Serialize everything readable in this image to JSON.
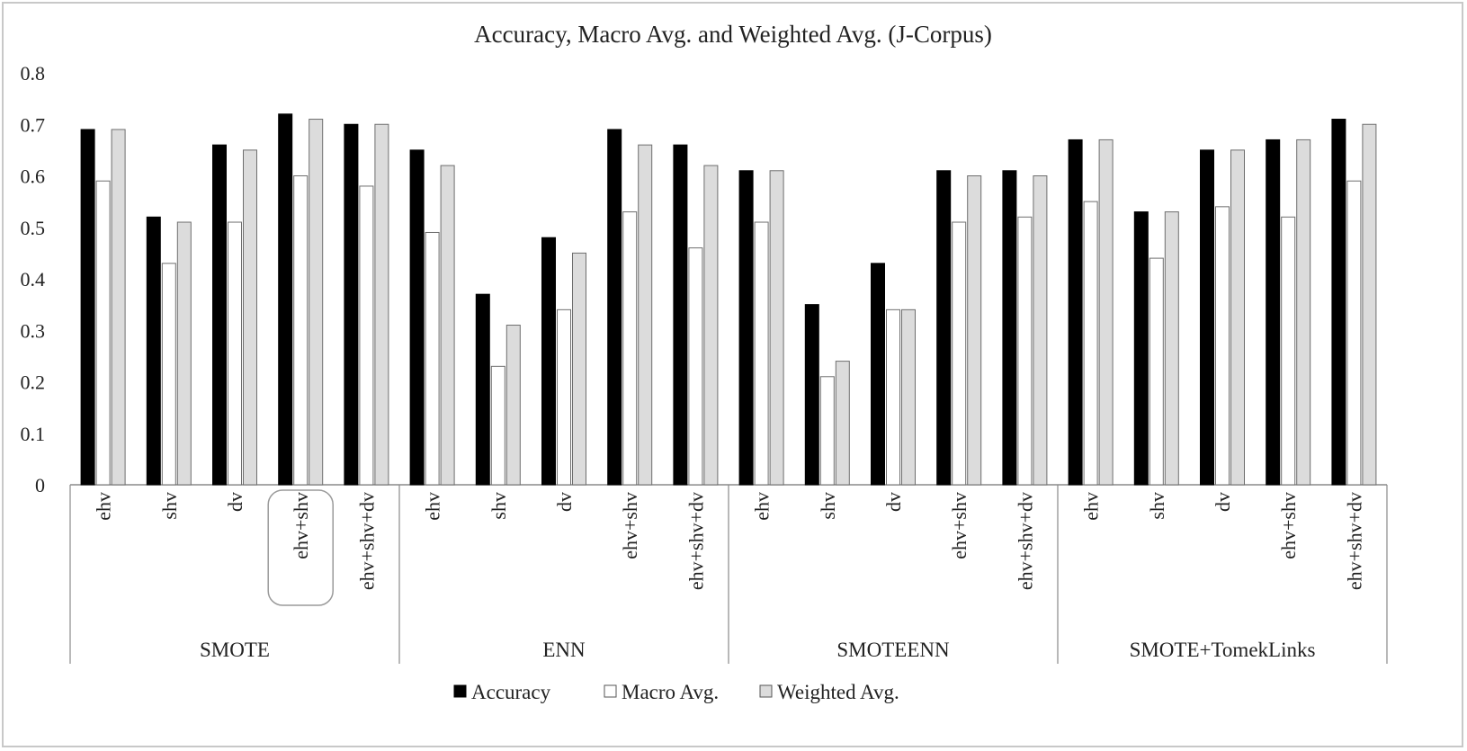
{
  "chart_data": {
    "type": "bar",
    "title": "Accuracy, Macro Avg. and Weighted Avg. (J-Corpus)",
    "xlabel": "",
    "ylabel": "",
    "ylim": [
      0,
      0.8
    ],
    "yticks": [
      "0",
      "0.1",
      "0.2",
      "0.3",
      "0.4",
      "0.5",
      "0.6",
      "0.7",
      "0.8"
    ],
    "grid": false,
    "legend_position": "bottom",
    "groups": [
      {
        "name": "SMOTE",
        "categories": [
          "ehv",
          "shv",
          "dv",
          "ehv+shv",
          "ehv+shv+dv"
        ]
      },
      {
        "name": "ENN",
        "categories": [
          "ehv",
          "shv",
          "dv",
          "ehv+shv",
          "ehv+shv+dv"
        ]
      },
      {
        "name": "SMOTEENN",
        "categories": [
          "ehv",
          "shv",
          "dv",
          "ehv+shv",
          "ehv+shv+dv"
        ]
      },
      {
        "name": "SMOTE+TomekLinks",
        "categories": [
          "ehv",
          "shv",
          "dv",
          "ehv+shv",
          "ehv+shv+dv"
        ]
      }
    ],
    "highlighted": {
      "group": 0,
      "category": 3
    },
    "series": [
      {
        "name": "Accuracy",
        "color": "#000000",
        "values": [
          0.69,
          0.52,
          0.66,
          0.72,
          0.7,
          0.65,
          0.37,
          0.48,
          0.69,
          0.66,
          0.61,
          0.35,
          0.43,
          0.61,
          0.61,
          0.67,
          0.53,
          0.65,
          0.67,
          0.71
        ]
      },
      {
        "name": "Macro Avg.",
        "color": "#ffffff",
        "values": [
          0.59,
          0.43,
          0.51,
          0.6,
          0.58,
          0.49,
          0.23,
          0.34,
          0.53,
          0.46,
          0.51,
          0.21,
          0.34,
          0.51,
          0.52,
          0.55,
          0.44,
          0.54,
          0.52,
          0.59
        ]
      },
      {
        "name": "Weighted Avg.",
        "color": "#dcdcdc",
        "values": [
          0.69,
          0.51,
          0.65,
          0.71,
          0.7,
          0.62,
          0.31,
          0.45,
          0.66,
          0.62,
          0.61,
          0.24,
          0.34,
          0.6,
          0.6,
          0.67,
          0.53,
          0.65,
          0.67,
          0.7
        ]
      }
    ]
  }
}
